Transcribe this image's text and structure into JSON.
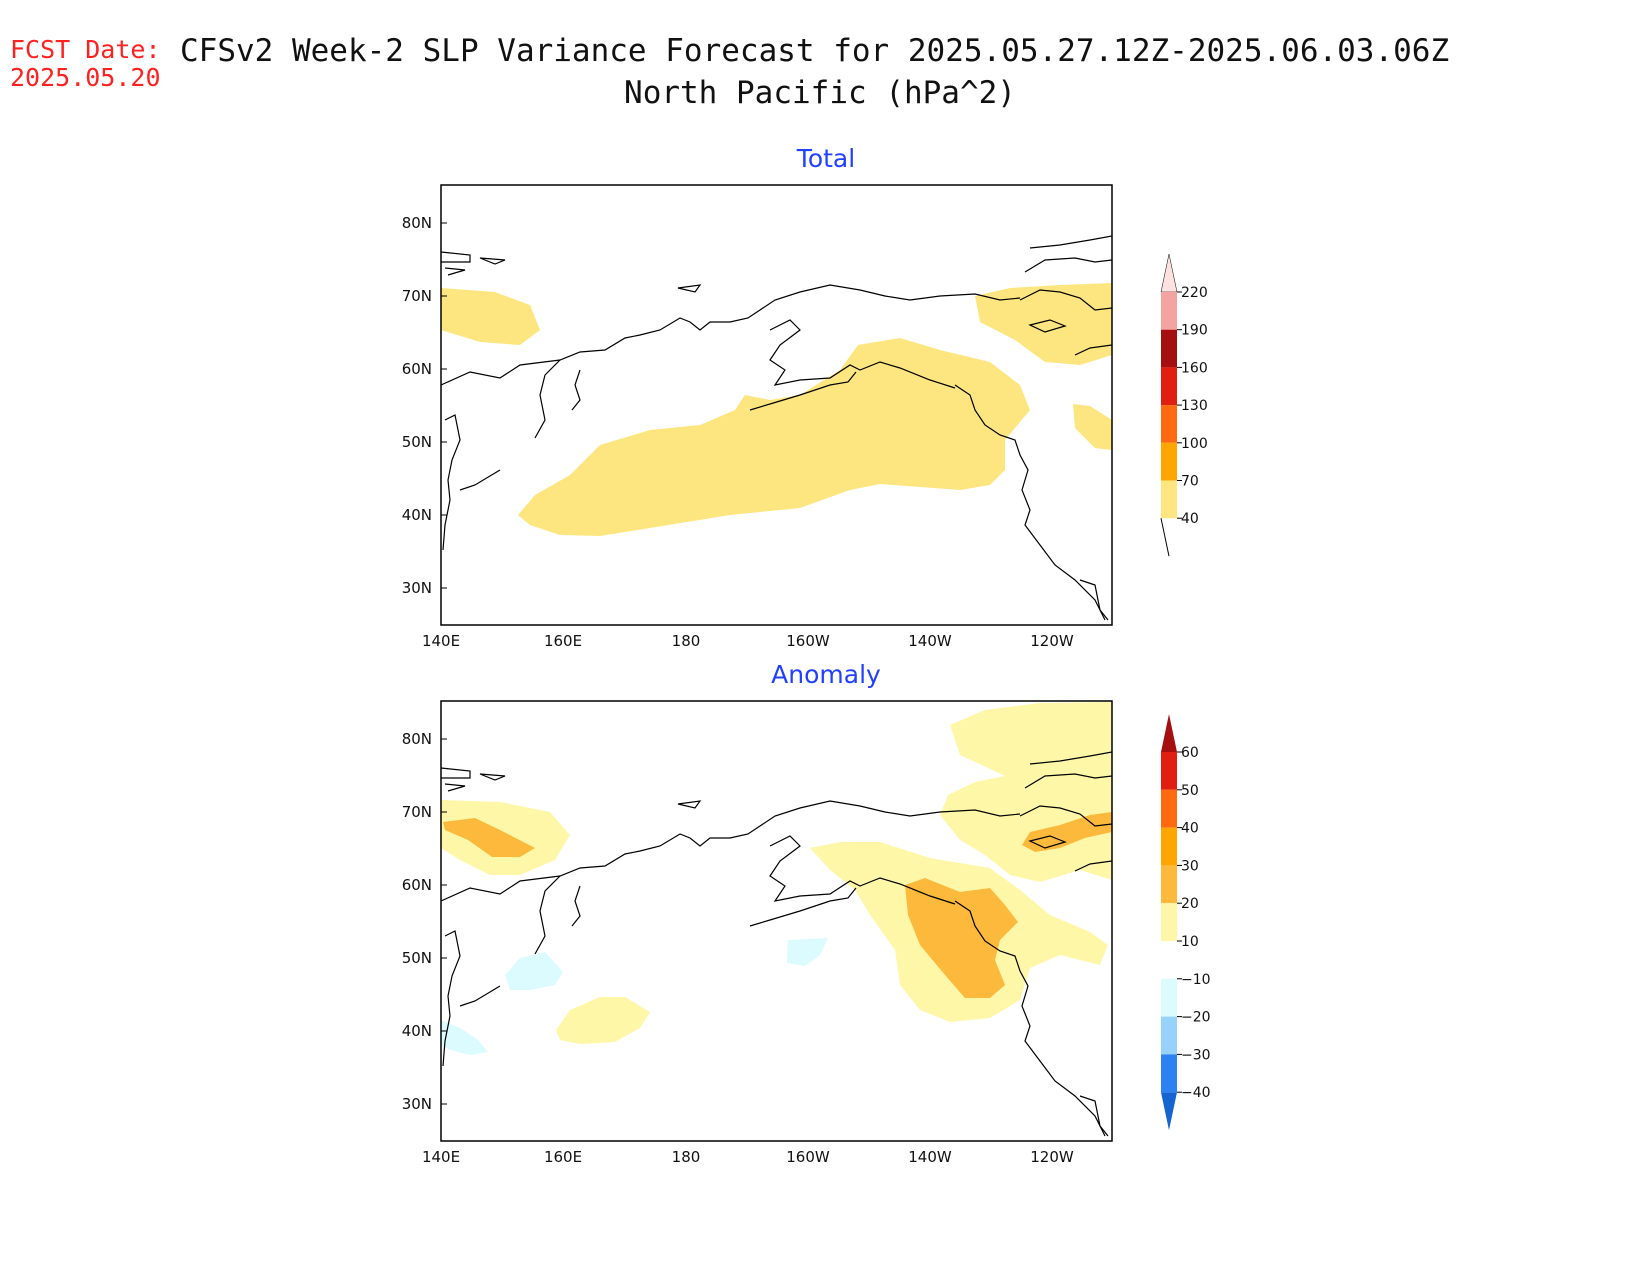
{
  "header": {
    "fcst_label": "FCST Date:",
    "fcst_date": "2025.05.20",
    "title_line1": "CFSv2 Week-2 SLP Variance Forecast for 2025.05.27.12Z-2025.06.03.06Z",
    "title_line2": "North Pacific (hPa^2)"
  },
  "map": {
    "lat_ticks": [
      "80N",
      "70N",
      "60N",
      "50N",
      "40N",
      "30N"
    ],
    "lon_ticks": [
      "140E",
      "160E",
      "180",
      "160W",
      "140W",
      "120W"
    ]
  },
  "panels": [
    {
      "title": "Total",
      "colorbar": {
        "labels": [
          "220",
          "190",
          "160",
          "130",
          "100",
          "70",
          "40"
        ],
        "colors": [
          "#fde2e0",
          "#f5a3a0",
          "#a50f0f",
          "#e11f10",
          "#ff6a10",
          "#ffa500",
          "#ffe680"
        ]
      },
      "shaded_regions": [
        {
          "level": "40-70",
          "color": "#fde680",
          "area": "Chukchi Sea / East Siberian coast"
        },
        {
          "level": "40-70",
          "color": "#fde680",
          "area": "Central North Pacific to Gulf of Alaska"
        },
        {
          "level": "40-70",
          "color": "#fde680",
          "area": "Canadian Arctic Archipelago"
        },
        {
          "level": "40-70",
          "color": "#fde680",
          "area": "Interior British Columbia"
        }
      ]
    },
    {
      "title": "Anomaly",
      "colorbar": {
        "labels": [
          "60",
          "50",
          "40",
          "30",
          "20",
          "10",
          "−10",
          "−20",
          "−30",
          "−40"
        ],
        "colors": [
          "#a50f0f",
          "#e11f10",
          "#ff6a10",
          "#ffa500",
          "#fdb93c",
          "#fff7a8",
          "#ffffff",
          "#dcfbff",
          "#96d2fa",
          "#2c82f0",
          "#1464d2"
        ]
      },
      "shaded_regions": [
        {
          "level": "10-20",
          "color": "#fff7a8",
          "area": "Northeast Siberia"
        },
        {
          "level": "20-30",
          "color": "#fdb93c",
          "area": "Northeast Siberia core"
        },
        {
          "level": "10-20",
          "color": "#fff7a8",
          "area": "Alaska to Gulf of Alaska"
        },
        {
          "level": "20-30",
          "color": "#fdb93c",
          "area": "Gulf of Alaska / British Columbia"
        },
        {
          "level": "10-20",
          "color": "#fff7a8",
          "area": "Arctic north of Canada"
        },
        {
          "level": "20-30",
          "color": "#fdb93c",
          "area": "Canadian Arctic islands"
        },
        {
          "level": "10-20",
          "color": "#fff7a8",
          "area": "Subtropical NW Pacific"
        },
        {
          "level": "-10--20",
          "color": "#dcfbff",
          "area": "Kuril region"
        },
        {
          "level": "-10--20",
          "color": "#dcfbff",
          "area": "South of Aleutians"
        },
        {
          "level": "-10--20",
          "color": "#dcfbff",
          "area": "Off Japan"
        }
      ]
    }
  ]
}
